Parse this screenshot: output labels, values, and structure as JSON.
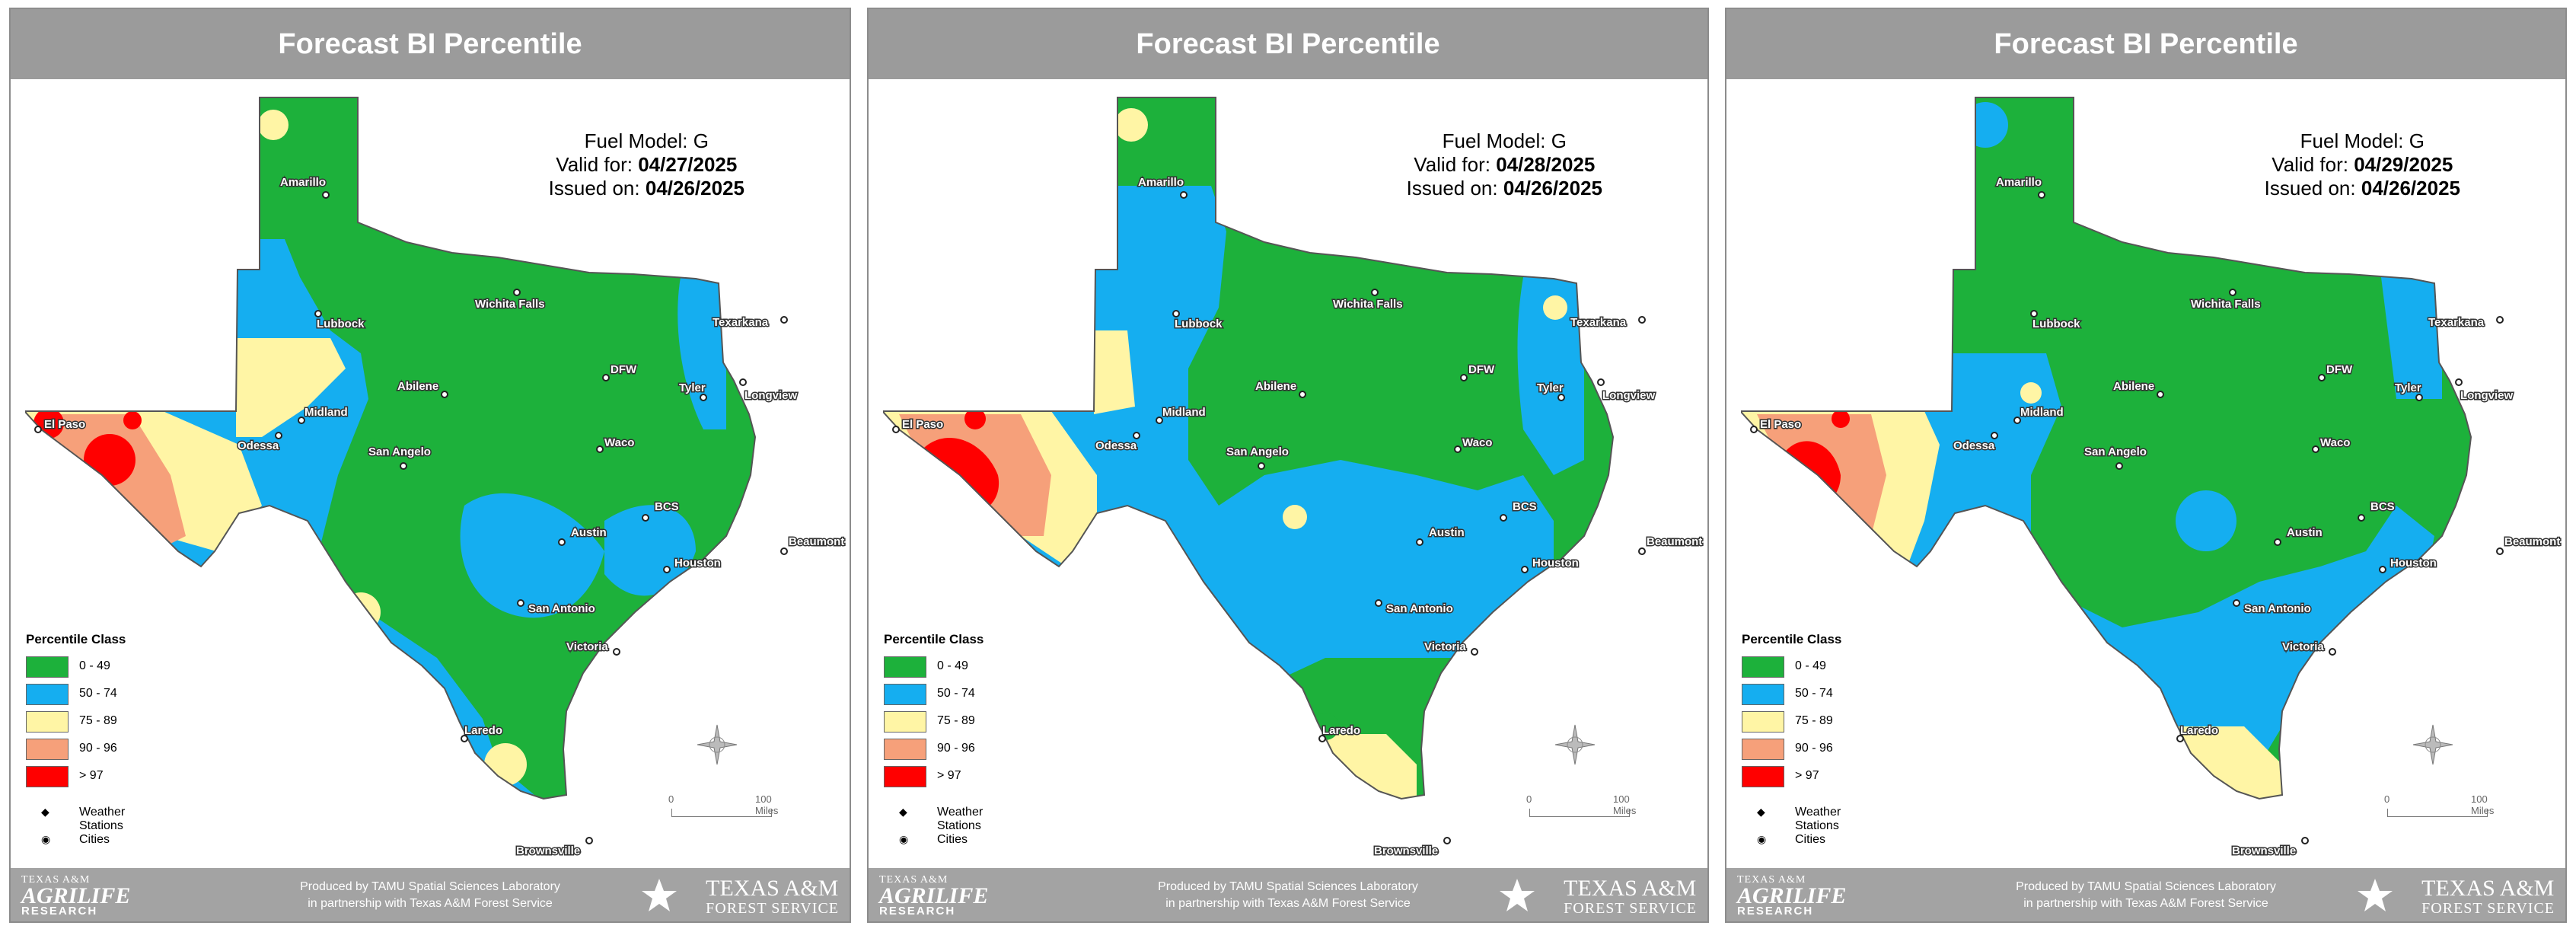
{
  "panels": [
    {
      "header": "Forecast BI Percentile",
      "fuel_model_label": "Fuel Model:",
      "fuel_model": "G",
      "valid_label": "Valid for:",
      "valid_date": "04/27/2025",
      "issued_label": "Issued on:",
      "issued_date": "04/26/2025"
    },
    {
      "header": "Forecast BI Percentile",
      "fuel_model_label": "Fuel Model:",
      "fuel_model": "G",
      "valid_label": "Valid for:",
      "valid_date": "04/28/2025",
      "issued_label": "Issued on:",
      "issued_date": "04/26/2025"
    },
    {
      "header": "Forecast BI Percentile",
      "fuel_model_label": "Fuel Model:",
      "fuel_model": "G",
      "valid_label": "Valid for:",
      "valid_date": "04/29/2025",
      "issued_label": "Issued on:",
      "issued_date": "04/26/2025"
    }
  ],
  "legend": {
    "title": "Percentile Class",
    "classes": [
      {
        "label": "0 - 49",
        "color": "#1db13b"
      },
      {
        "label": "50 - 74",
        "color": "#15aef0"
      },
      {
        "label": "75 - 89",
        "color": "#fff5a5"
      },
      {
        "label": "90 - 96",
        "color": "#f6a07a"
      },
      {
        "label": "> 97",
        "color": "#ff0000"
      }
    ],
    "weather_stations": "Weather Stations",
    "cities": "Cities"
  },
  "cities": [
    "Amarillo",
    "Lubbock",
    "Wichita Falls",
    "Texarkana",
    "DFW",
    "Abilene",
    "Tyler",
    "Longview",
    "El Paso",
    "Midland",
    "Odessa",
    "San Angelo",
    "Waco",
    "BCS",
    "Austin",
    "Beaumont",
    "Houston",
    "San Antonio",
    "Victoria",
    "Laredo",
    "Brownsville"
  ],
  "scale": {
    "zero": "0",
    "miles": "100 Miles"
  },
  "footer": {
    "credit_line1": "Produced by TAMU Spatial Sciences Laboratory",
    "credit_line2": "in partnership with Texas A&M Forest Service",
    "agri_top": "TEXAS A&M",
    "agri_main": "AGRILIFE",
    "agri_sub": "RESEARCH",
    "tamu_top": "TEXAS A&M",
    "tamu_sub": "FOREST SERVICE"
  }
}
